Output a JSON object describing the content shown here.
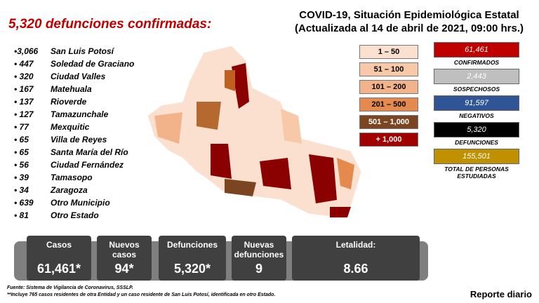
{
  "header": {
    "headline": "5,320 defunciones confirmadas:",
    "title": "COVID-19, Situación Epidemiológica Estatal",
    "subtitle": "(Actualizada al 14 de abril de 2021, 09:00 hrs.)"
  },
  "municipalities": [
    {
      "value": "•3,066",
      "name": "San Luis Potosí"
    },
    {
      "value": "• 447",
      "name": "Soledad de Graciano"
    },
    {
      "value": "• 320",
      "name": "Ciudad Valles"
    },
    {
      "value": "• 167",
      "name": "Matehuala"
    },
    {
      "value": "• 137",
      "name": "Rioverde"
    },
    {
      "value": "• 127",
      "name": "Tamazunchale"
    },
    {
      "value": "• 77",
      "name": "Mexquitic"
    },
    {
      "value": "• 65",
      "name": "Villa de Reyes"
    },
    {
      "value": "• 65",
      "name": "Santa María del Río"
    },
    {
      "value": "• 56",
      "name": "Ciudad Fernández"
    },
    {
      "value": "• 39",
      "name": "Tamasopo"
    },
    {
      "value": "• 34",
      "name": "Zaragoza"
    },
    {
      "value": "• 639",
      "name": "Otro Municipio"
    },
    {
      "value": "• 81",
      "name": "Otro Estado"
    }
  ],
  "legend": [
    {
      "label": "1 – 50",
      "color": "#fbe0d0"
    },
    {
      "label": "51 – 100",
      "color": "#f7c9a8"
    },
    {
      "label": "101 – 200",
      "color": "#f2b38a"
    },
    {
      "label": "201 – 500",
      "color": "#e58a4e"
    },
    {
      "label": "501 – 1,000",
      "color": "#7a4520"
    },
    {
      "label": "+ 1,000",
      "color": "#a00000"
    }
  ],
  "stats": [
    {
      "value": "61,461",
      "label": "CONFIRMADOS",
      "color": "#c00000"
    },
    {
      "value": "2,443",
      "label": "SOSPECHOSOS",
      "color": "#bfbfbf"
    },
    {
      "value": "91,597",
      "label": "NEGATIVOS",
      "color": "#2f5597"
    },
    {
      "value": "5,320",
      "label": "DEFUNCIONES",
      "color": "#000000"
    },
    {
      "value": "155,501",
      "label": "TOTAL DE PERSONAS ESTUDIADAS",
      "color": "#bf9000"
    }
  ],
  "summary": [
    {
      "label": "Casos",
      "value": "61,461*"
    },
    {
      "label": "Nuevos casos",
      "value": "94*"
    },
    {
      "label": "Defunciones",
      "value": "5,320*"
    },
    {
      "label": "Nuevas defunciones",
      "value": "9"
    },
    {
      "label": "Letalidad:",
      "value": "8.66"
    }
  ],
  "footer": {
    "source": "Fuente: Sistema de Vigilancia de Coronavirus, SSSLP.",
    "note": "**Incluye 765 casos residentes de otra Entidad y un caso residente de San Luis Potosí, identificada en otro Estado.",
    "report": "Reporte diario"
  }
}
